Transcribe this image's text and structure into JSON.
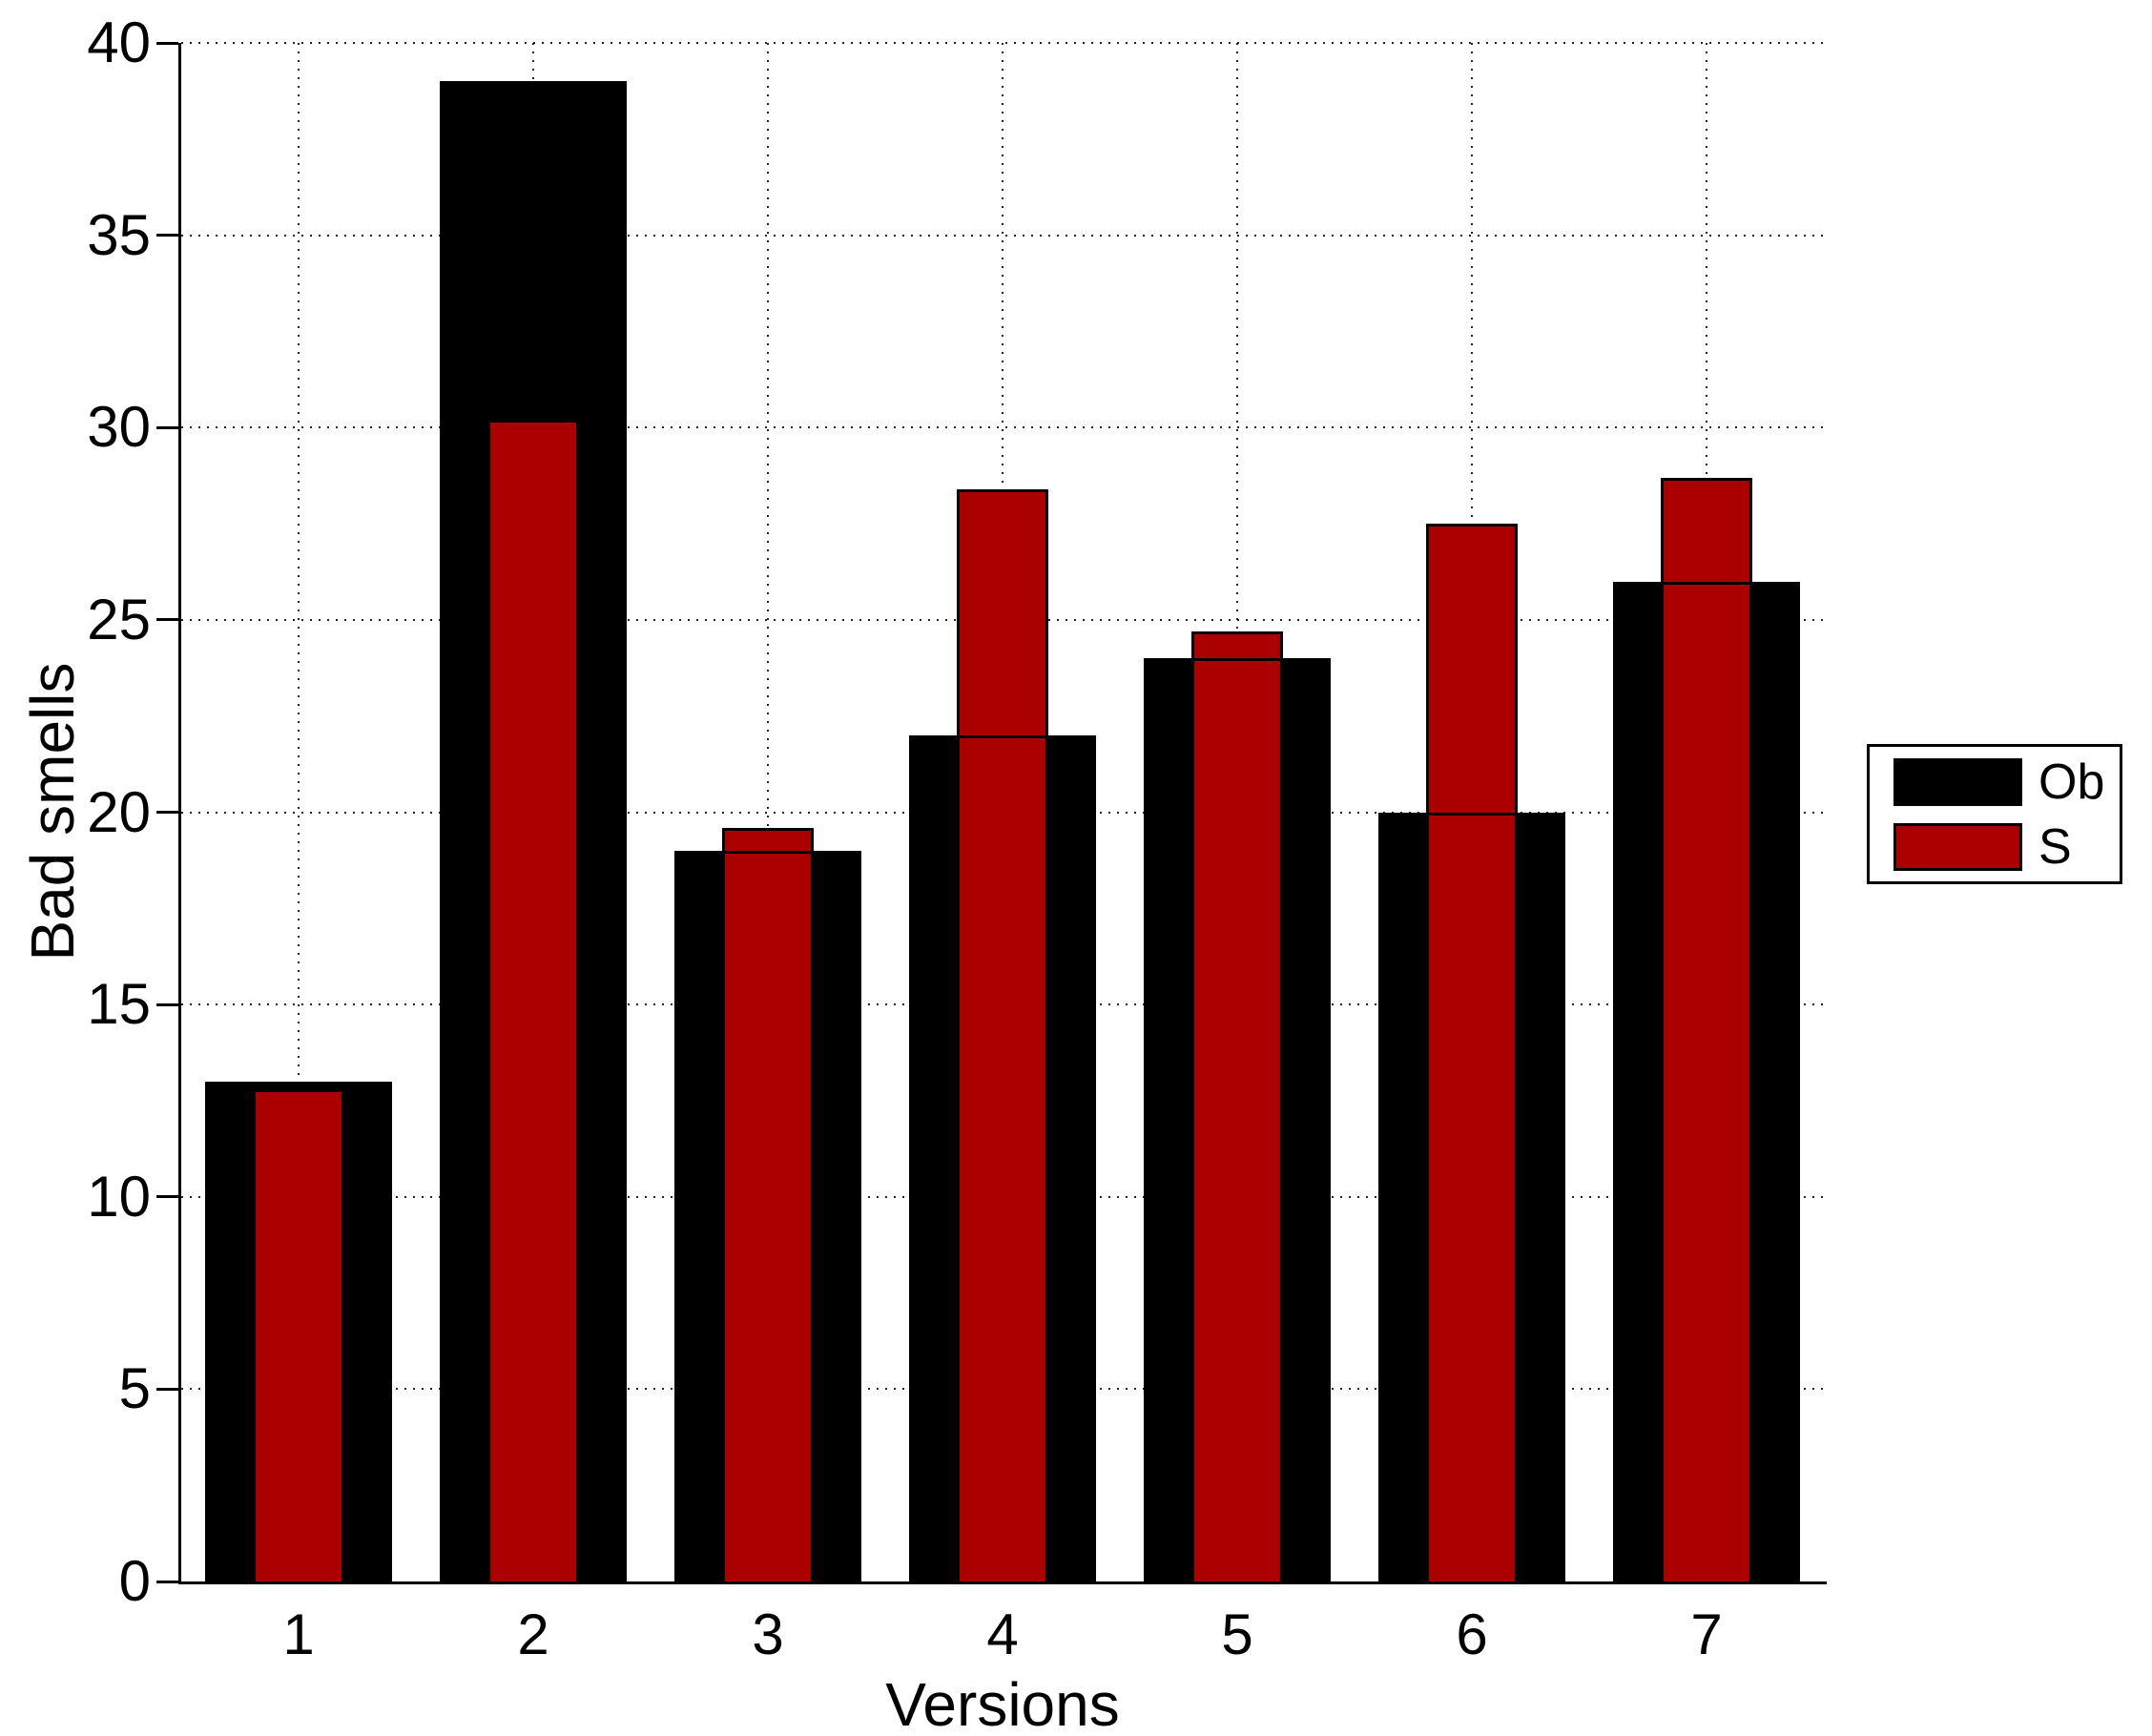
{
  "chart_data": {
    "type": "bar",
    "title": "",
    "xlabel": "Versions",
    "ylabel": "Bad smells",
    "categories": [
      "1",
      "2",
      "3",
      "4",
      "5",
      "6",
      "7"
    ],
    "series": [
      {
        "name": "Ob",
        "color": "#000000",
        "bar_width_frac": 0.8,
        "values": [
          13,
          39,
          19,
          22,
          24,
          20,
          26
        ]
      },
      {
        "name": "S",
        "color": "#AA0000",
        "bar_width_frac": 0.39,
        "values": [
          12.8,
          30.2,
          19.6,
          28.4,
          24.7,
          27.5,
          28.7
        ]
      }
    ],
    "ylim": [
      0,
      40
    ],
    "yticks": [
      0,
      5,
      10,
      15,
      20,
      25,
      30,
      35,
      40
    ],
    "grid": true,
    "grid_style": "dotted",
    "bar_edge_color": "#000000",
    "background_color": "#ffffff",
    "legend": {
      "position": "middle-right",
      "entries": [
        "Ob",
        "S"
      ]
    }
  }
}
